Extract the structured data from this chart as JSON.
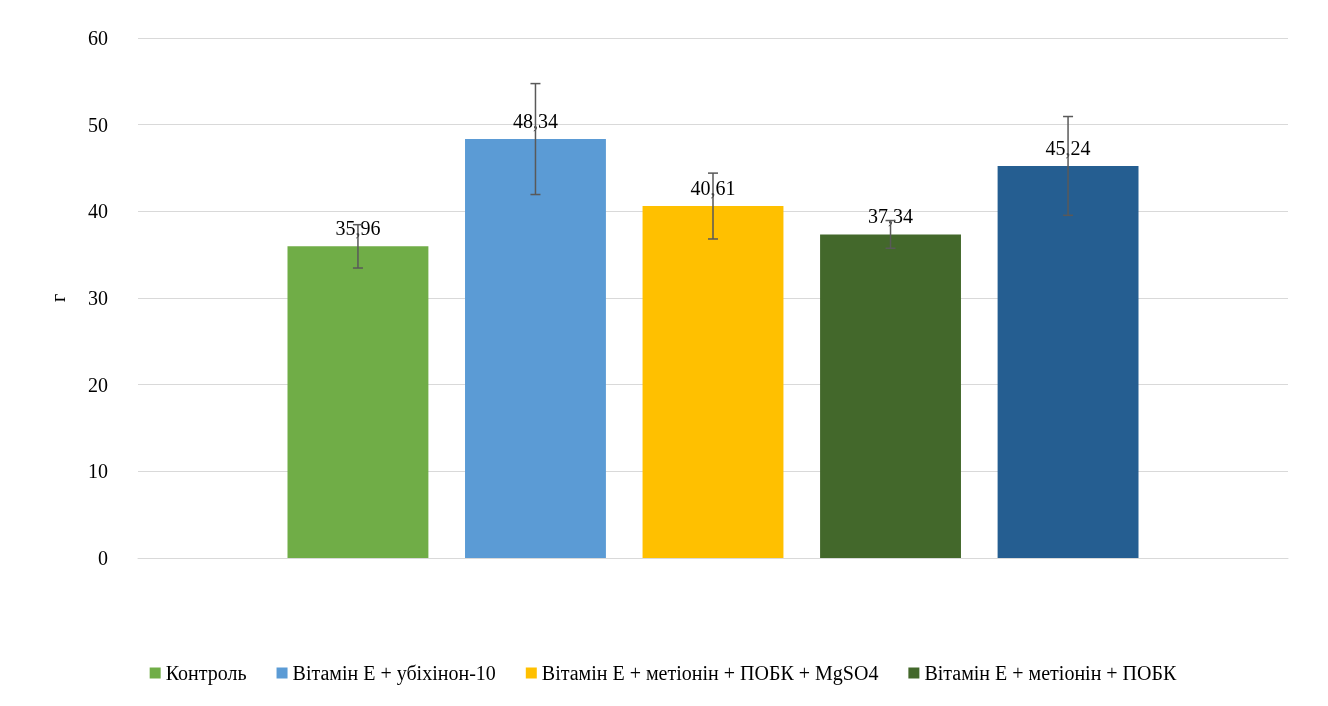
{
  "chart_data": {
    "type": "bar",
    "ylabel": "г",
    "categories": [
      null
    ],
    "series": [
      {
        "name": "Контроль",
        "color": "#70ad47",
        "values": [
          35.96
        ],
        "errors": [
          2.5
        ],
        "value_labels": [
          "35,96"
        ]
      },
      {
        "name": "Вітамін Е + убіхінон-10",
        "color": "#5b9bd5",
        "values": [
          48.34
        ],
        "errors": [
          6.4
        ],
        "value_labels": [
          "48,34"
        ]
      },
      {
        "name": "Вітамін Е + метіонін + ПОБК + MgSO4",
        "color": "#ffc000",
        "values": [
          40.61
        ],
        "errors": [
          3.8
        ],
        "value_labels": [
          "40,61"
        ]
      },
      {
        "name": "Вітамін Е + метіонін + ПОБК",
        "color": "#43682b",
        "values": [
          37.34
        ],
        "errors": [
          1.6
        ],
        "value_labels": [
          "37,34"
        ]
      },
      {
        "color": "#255e91",
        "values": [
          45.24
        ],
        "errors": [
          5.7
        ],
        "value_labels": [
          "45,24"
        ]
      }
    ],
    "ylim": [
      0,
      60
    ],
    "yticks": [
      0,
      10,
      20,
      30,
      40,
      50,
      60
    ],
    "grid": "y",
    "legend": "bottom"
  }
}
